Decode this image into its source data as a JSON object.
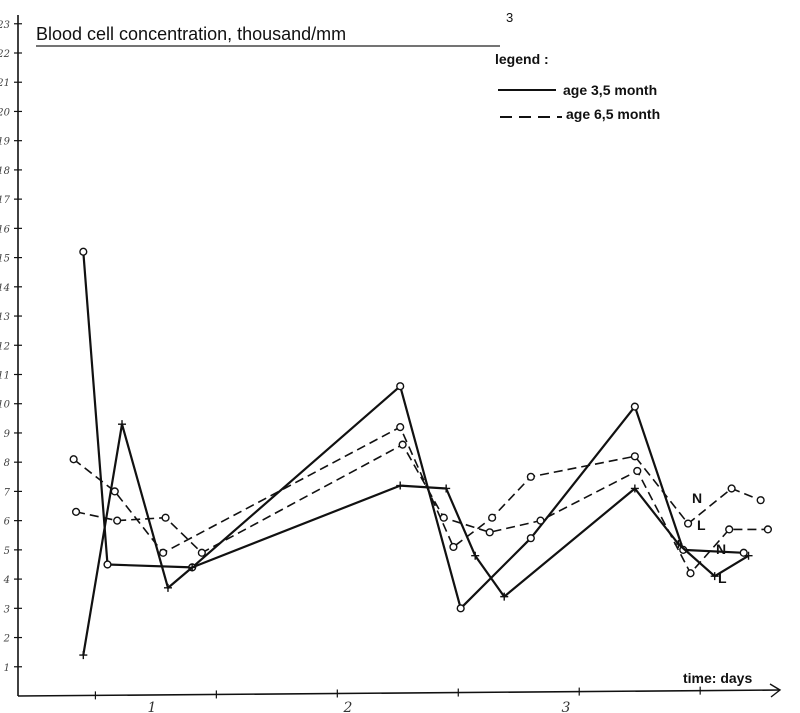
{
  "chart_data": {
    "type": "line",
    "title": "Blood cell concentration, thousand/mm",
    "title_superscript": "3",
    "xlabel": "time: days",
    "ylabel": "",
    "x_ticks": [
      "1",
      "2",
      "3"
    ],
    "y_ticks": [
      "1",
      "2",
      "3",
      "4",
      "5",
      "6",
      "7",
      "8",
      "9",
      "10",
      "11",
      "12",
      "13",
      "14",
      "15",
      "16",
      "17",
      "18",
      "19",
      "20",
      "21",
      "22",
      "23"
    ],
    "xlim": [
      0.6,
      3.75
    ],
    "ylim": [
      0,
      23.3
    ],
    "grid": false,
    "legend": {
      "title": "legend :",
      "placement": "top-right",
      "entries": [
        {
          "label": "age  3,5 month",
          "style": "solid"
        },
        {
          "label": "age  6,5 month",
          "style": "dashed"
        }
      ]
    },
    "series": [
      {
        "name": "N",
        "line_style": "solid",
        "marker": "circle",
        "x": [
          0.87,
          0.97,
          1.32,
          2.18,
          2.43,
          2.72,
          3.15,
          3.35,
          3.6
        ],
        "y": [
          15.2,
          4.5,
          4.4,
          10.6,
          3.0,
          5.4,
          9.9,
          5.0,
          4.9
        ]
      },
      {
        "name": "L",
        "line_style": "solid",
        "marker": "cross",
        "x": [
          0.87,
          1.03,
          1.22,
          1.32,
          2.18,
          2.37,
          2.49,
          2.61,
          3.15,
          3.33,
          3.48,
          3.62
        ],
        "y": [
          1.4,
          9.3,
          3.7,
          4.4,
          7.2,
          7.1,
          4.8,
          3.4,
          7.1,
          5.2,
          4.1,
          4.8
        ]
      },
      {
        "name": "N",
        "line_style": "dashed",
        "marker": "circle",
        "x": [
          0.83,
          1.0,
          1.2,
          2.18,
          2.4,
          2.56,
          2.72,
          3.15,
          3.37,
          3.55,
          3.67
        ],
        "y": [
          8.1,
          7.0,
          4.9,
          9.2,
          5.1,
          6.1,
          7.5,
          8.2,
          5.9,
          7.1,
          6.7
        ]
      },
      {
        "name": "L",
        "line_style": "dashed",
        "marker": "circle",
        "x": [
          0.84,
          1.01,
          1.21,
          1.36,
          2.19,
          2.36,
          2.55,
          2.76,
          3.16,
          3.38,
          3.54,
          3.7
        ],
        "y": [
          6.3,
          6.0,
          6.1,
          4.9,
          8.6,
          6.1,
          5.6,
          6.0,
          7.7,
          4.2,
          5.7,
          5.7
        ]
      }
    ],
    "end_labels": [
      "N",
      "L",
      "N",
      "L"
    ]
  }
}
